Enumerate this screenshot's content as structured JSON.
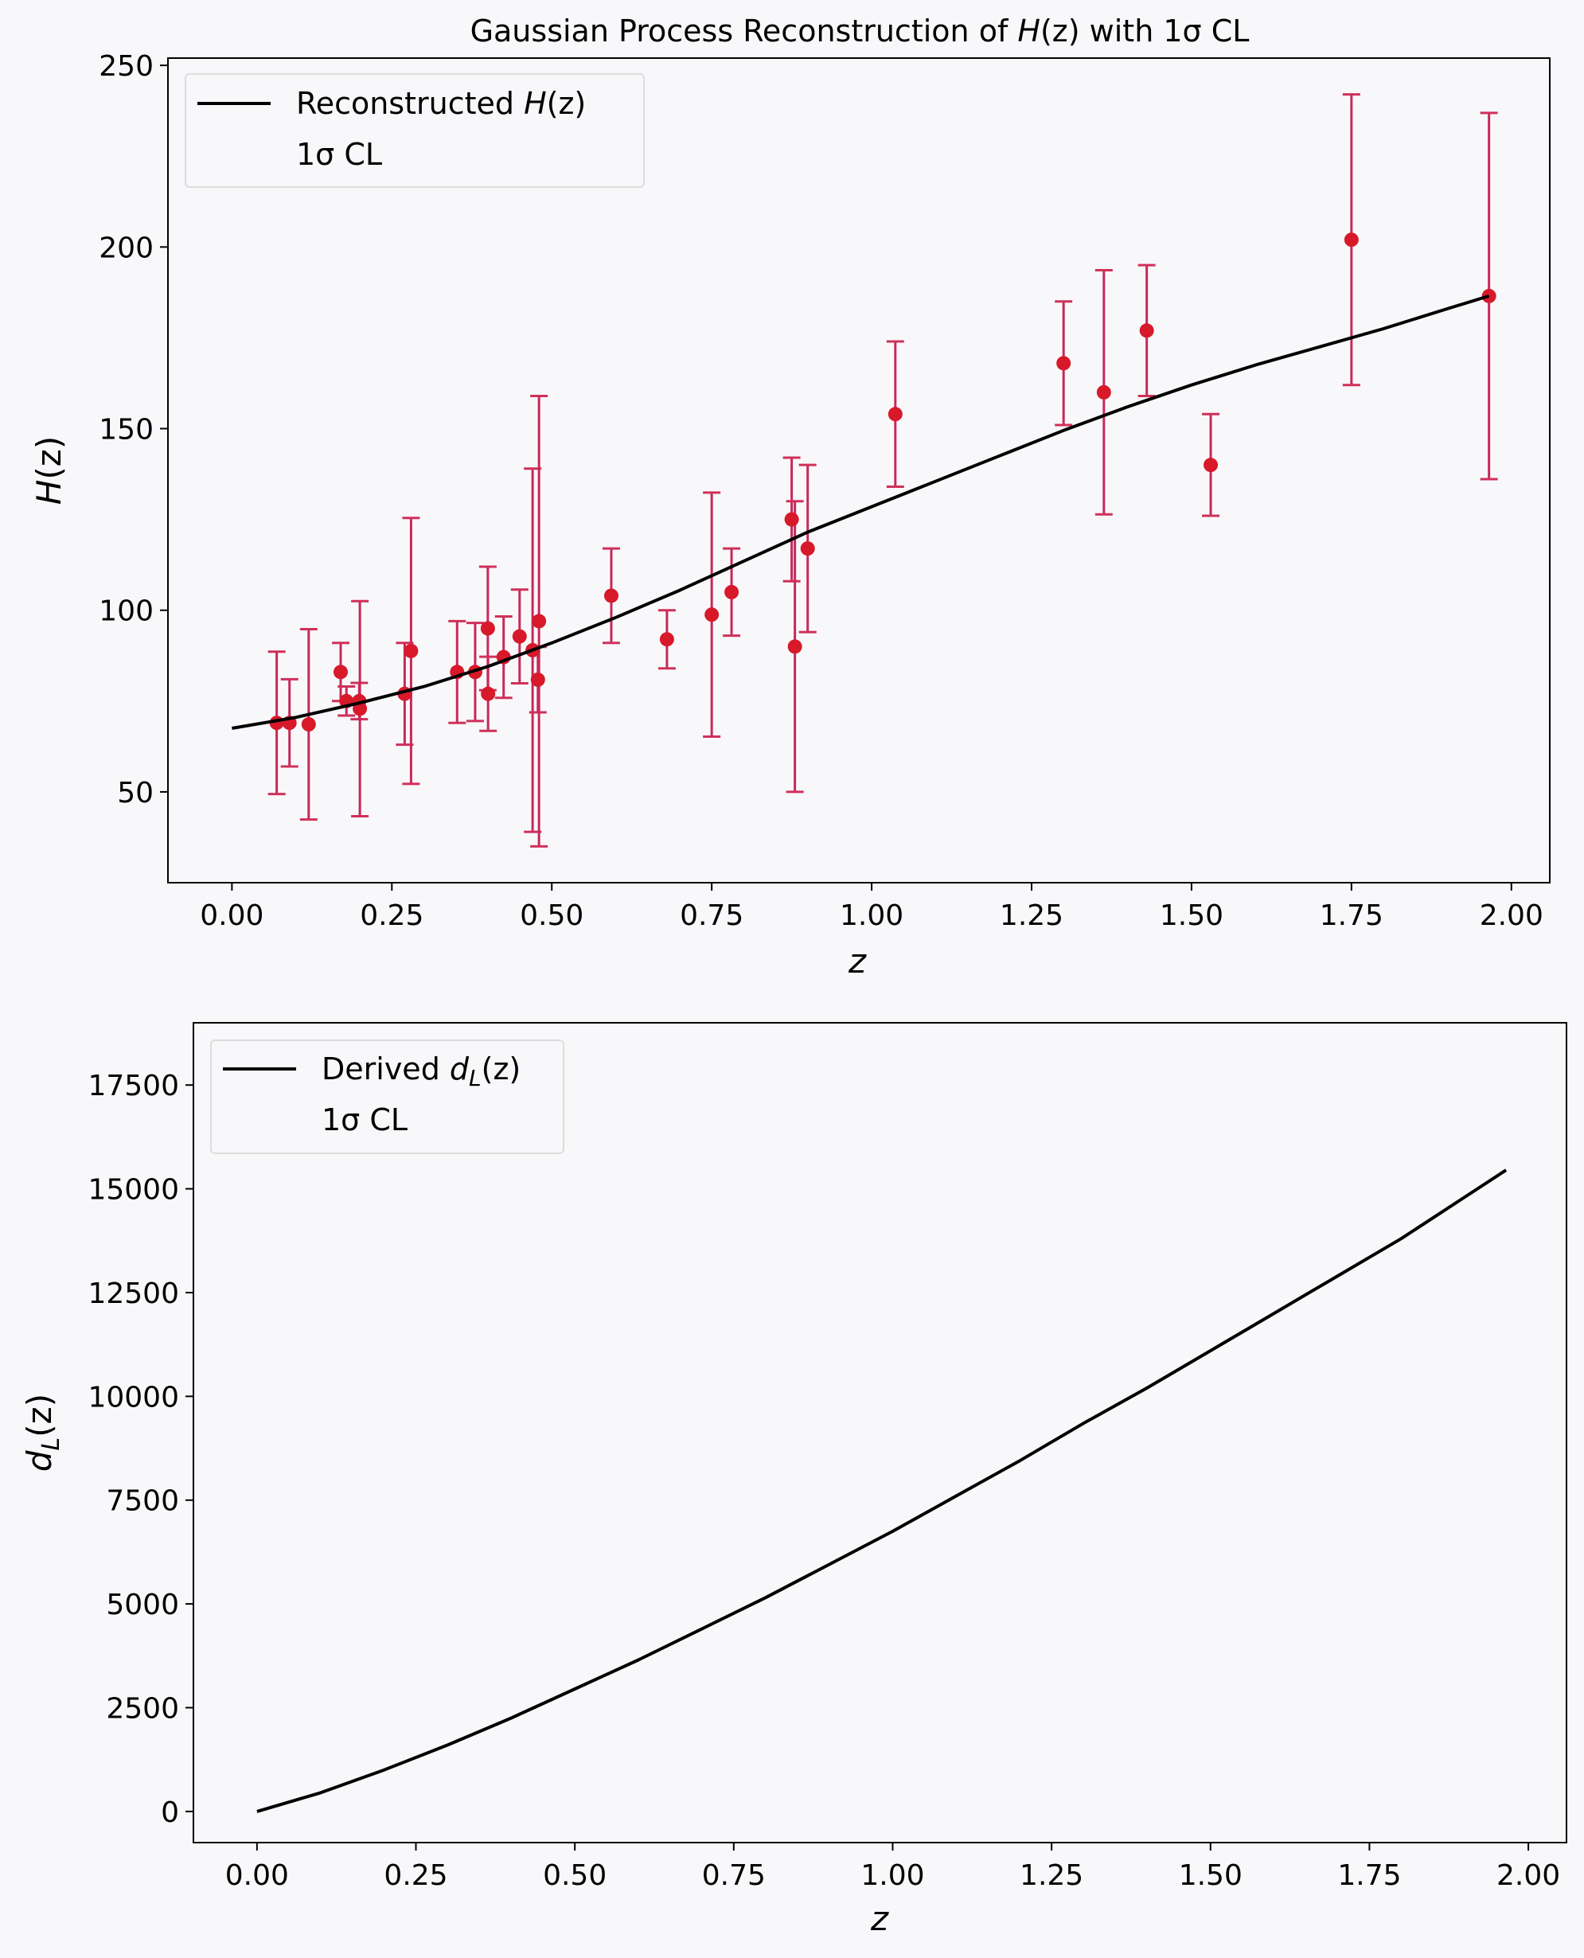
{
  "chart_data": [
    {
      "type": "line",
      "title": "Gaussian Process Reconstruction of H(z) with 1σ CL",
      "title_parts": {
        "pre": "Gaussian Process Reconstruction of ",
        "var": "H",
        "paren": "(z)",
        "post": " with 1σ CL"
      },
      "xlabel": "z",
      "ylabel": "H(z)",
      "ylabel_parts": {
        "var": "H",
        "paren": "(z)"
      },
      "xlim": [
        -0.1,
        2.06
      ],
      "ylim": [
        25,
        252
      ],
      "xticks": [
        0.0,
        0.25,
        0.5,
        0.75,
        1.0,
        1.25,
        1.5,
        1.75,
        2.0
      ],
      "xtick_labels": [
        "0.00",
        "0.25",
        "0.50",
        "0.75",
        "1.00",
        "1.25",
        "1.50",
        "1.75",
        "2.00"
      ],
      "yticks": [
        50,
        100,
        150,
        200,
        250
      ],
      "ytick_labels": [
        "50",
        "100",
        "150",
        "200",
        "250"
      ],
      "grid": false,
      "legend_position": "top-left",
      "legend": [
        {
          "label_pre": "Reconstructed ",
          "label_var": "H",
          "label_post": "(z)",
          "style": "line",
          "color": "#000000"
        },
        {
          "label": "1σ CL",
          "style": "band",
          "color": "#d0d0d0"
        }
      ],
      "series": [
        {
          "name": "Reconstructed H(z)",
          "kind": "line",
          "color": "#000000",
          "x": [
            0.0,
            0.1,
            0.2,
            0.3,
            0.4,
            0.5,
            0.6,
            0.7,
            0.8,
            0.9,
            1.0,
            1.1,
            1.2,
            1.3,
            1.4,
            1.5,
            1.6,
            1.7,
            1.8,
            1.9,
            1.965
          ],
          "y": [
            67.5,
            70.5,
            74.5,
            79,
            84.5,
            91,
            98,
            105.5,
            113.5,
            121.5,
            128.5,
            135.5,
            142.5,
            149.5,
            156,
            162,
            167.5,
            172.5,
            177.5,
            183,
            186.5
          ]
        },
        {
          "kind": "errorbar",
          "marker_color": "#d7192a",
          "errbar_color": "#c8285a",
          "cap_color": "#d0305a",
          "x": [
            0.07,
            0.09,
            0.12,
            0.17,
            0.179,
            0.199,
            0.2,
            0.27,
            0.28,
            0.352,
            0.3802,
            0.4,
            0.4004,
            0.4247,
            0.4497,
            0.47,
            0.4783,
            0.48,
            0.593,
            0.68,
            0.75,
            0.781,
            0.875,
            0.88,
            0.9,
            1.037,
            1.3,
            1.363,
            1.43,
            1.53,
            1.75,
            1.965
          ],
          "y": [
            69,
            69,
            68.6,
            83,
            75,
            75,
            72.9,
            77,
            88.8,
            83,
            83,
            95,
            77,
            87.1,
            92.8,
            89,
            80.9,
            97,
            104,
            92,
            98.8,
            105,
            125,
            90,
            117,
            154,
            168,
            160,
            177,
            140,
            202,
            186.5
          ],
          "err": [
            19.6,
            12,
            26.2,
            8,
            4,
            5,
            29.6,
            14,
            36.6,
            14,
            13.5,
            17,
            10.2,
            11.2,
            12.9,
            50,
            9,
            62,
            13,
            8,
            33.6,
            12,
            17,
            40,
            23,
            20,
            17,
            33.6,
            18,
            14,
            40,
            50.4
          ]
        }
      ]
    },
    {
      "type": "line",
      "title": "",
      "xlabel": "z",
      "ylabel": "d_L(z)",
      "ylabel_parts": {
        "var": "d",
        "sub": "L",
        "paren": "(z)"
      },
      "xlim": [
        -0.1,
        2.06
      ],
      "ylim": [
        -750,
        19000
      ],
      "xticks": [
        0.0,
        0.25,
        0.5,
        0.75,
        1.0,
        1.25,
        1.5,
        1.75,
        2.0
      ],
      "xtick_labels": [
        "0.00",
        "0.25",
        "0.50",
        "0.75",
        "1.00",
        "1.25",
        "1.50",
        "1.75",
        "2.00"
      ],
      "yticks": [
        0,
        2500,
        5000,
        7500,
        10000,
        12500,
        15000,
        17500
      ],
      "ytick_labels": [
        "0",
        "2500",
        "5000",
        "7500",
        "10000",
        "12500",
        "15000",
        "17500"
      ],
      "grid": false,
      "legend_position": "top-left",
      "legend": [
        {
          "label_pre": "Derived ",
          "label_var": "d",
          "label_sub": "L",
          "label_post": "(z)",
          "style": "line",
          "color": "#000000"
        },
        {
          "label": "1σ CL",
          "style": "band",
          "color": "#d0d0d0"
        }
      ],
      "series": [
        {
          "name": "Derived d_L(z)",
          "kind": "line",
          "color": "#000000",
          "x": [
            0.0,
            0.1,
            0.2,
            0.3,
            0.4,
            0.5,
            0.6,
            0.7,
            0.8,
            0.9,
            1.0,
            1.1,
            1.2,
            1.3,
            1.4,
            1.5,
            1.6,
            1.7,
            1.8,
            1.9,
            1.965
          ],
          "y": [
            0,
            450,
            1000,
            1600,
            2250,
            2950,
            3650,
            4400,
            5150,
            5950,
            6750,
            7600,
            8450,
            9350,
            10200,
            11100,
            12000,
            12900,
            13800,
            14800,
            15450
          ]
        }
      ]
    }
  ]
}
